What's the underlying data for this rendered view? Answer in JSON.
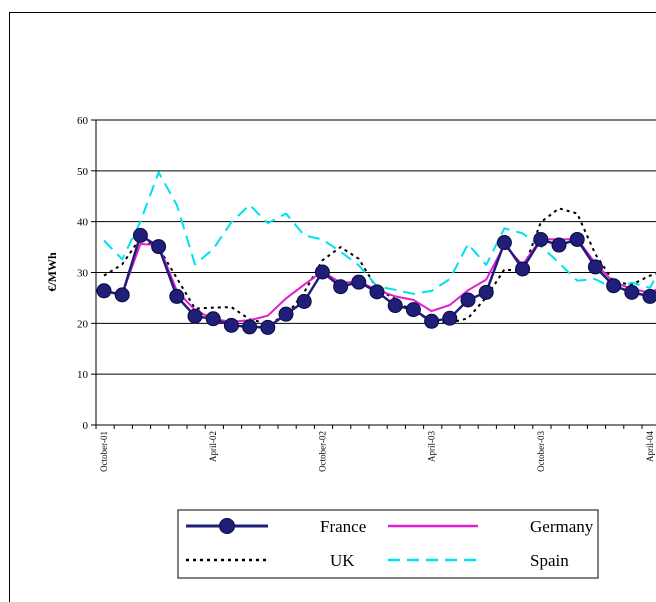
{
  "chart_data": {
    "type": "line",
    "ylabel": "€/MWh",
    "xlabel": "",
    "ylim": [
      0,
      60
    ],
    "yticks": [
      0,
      10,
      20,
      30,
      40,
      50,
      60
    ],
    "grid": true,
    "legend_position": "bottom",
    "x_tick_labels": [
      {
        "index": 0,
        "label": "October-01"
      },
      {
        "index": 6,
        "label": "April-02"
      },
      {
        "index": 12,
        "label": "October-02"
      },
      {
        "index": 18,
        "label": "April-03"
      },
      {
        "index": 24,
        "label": "October-03"
      },
      {
        "index": 30,
        "label": "April-04"
      }
    ],
    "point_count": 32,
    "series": [
      {
        "name": "France",
        "color": "#1f1f7a",
        "style": "solid-markers",
        "values": [
          26.4,
          25.6,
          37.3,
          35.1,
          25.3,
          21.4,
          20.9,
          19.6,
          19.3,
          19.2,
          21.8,
          24.3,
          30.1,
          27.2,
          28.1,
          26.2,
          23.5,
          22.7,
          20.4,
          21.0,
          24.6,
          26.1,
          35.9,
          30.7,
          36.5,
          35.4,
          36.5,
          31.1,
          27.4,
          26.1,
          25.3,
          27.6
        ]
      },
      {
        "name": "Germany",
        "color": "#e020d0",
        "style": "solid",
        "values": [
          26.2,
          25.8,
          35.6,
          35.4,
          26.4,
          22.6,
          20.9,
          20.3,
          20.6,
          21.5,
          24.9,
          27.6,
          30.2,
          28.0,
          28.2,
          26.6,
          25.3,
          24.6,
          22.4,
          23.6,
          26.5,
          28.6,
          35.4,
          31.5,
          36.6,
          36.5,
          36.6,
          31.8,
          28.1,
          26.8,
          26.0,
          27.8
        ]
      },
      {
        "name": "UK",
        "color": "#000000",
        "style": "dotted",
        "values": [
          29.4,
          31.6,
          36.8,
          34.9,
          28.9,
          22.9,
          23.1,
          23.2,
          20.8,
          19.9,
          21.5,
          26.1,
          32.4,
          35.0,
          32.7,
          26.8,
          24.8,
          22.1,
          20.7,
          20.1,
          21.0,
          25.1,
          30.6,
          30.2,
          39.9,
          42.6,
          41.6,
          33.6,
          28.2,
          27.6,
          29.4,
          30.3
        ]
      },
      {
        "name": "Spain",
        "color": "#00e0f0",
        "style": "dashed",
        "values": [
          36.3,
          32.6,
          40.0,
          49.7,
          43.3,
          31.6,
          34.6,
          39.9,
          43.3,
          39.7,
          41.6,
          37.3,
          36.5,
          34.1,
          31.4,
          27.3,
          26.6,
          25.8,
          26.4,
          28.7,
          35.6,
          31.5,
          38.7,
          37.7,
          35.2,
          31.9,
          28.4,
          28.7,
          26.8,
          28.0,
          27.0,
          33.6
        ]
      }
    ]
  }
}
